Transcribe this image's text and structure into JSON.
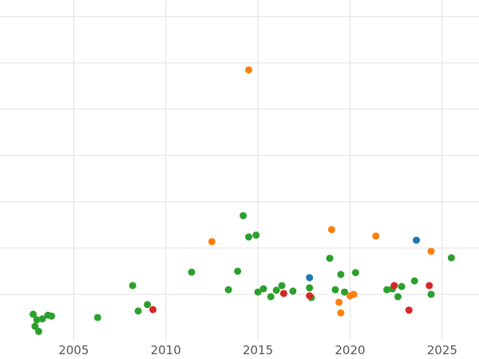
{
  "chart_data": {
    "type": "scatter",
    "title": "",
    "xlabel": "",
    "ylabel": "",
    "xlim": [
      2001,
      2027
    ],
    "ylim": [
      0,
      7.36
    ],
    "grid": true,
    "legend": "none",
    "x_ticks": [
      {
        "value": 2005,
        "label": "2005"
      },
      {
        "value": 2010,
        "label": "2010"
      },
      {
        "value": 2015,
        "label": "2015"
      },
      {
        "value": 2020,
        "label": "2020"
      },
      {
        "value": 2025,
        "label": "2025"
      }
    ],
    "y_gridlines": [
      1,
      2,
      3,
      4,
      5,
      6,
      7
    ],
    "series": [
      {
        "name": "series-green",
        "color": "#2ca02c",
        "points": [
          [
            2002.8,
            0.57
          ],
          [
            2002.9,
            0.31
          ],
          [
            2003.0,
            0.45
          ],
          [
            2003.1,
            0.2
          ],
          [
            2003.3,
            0.47
          ],
          [
            2003.6,
            0.55
          ],
          [
            2003.8,
            0.53
          ],
          [
            2006.3,
            0.5
          ],
          [
            2008.2,
            1.19
          ],
          [
            2008.5,
            0.64
          ],
          [
            2009.0,
            0.78
          ],
          [
            2011.4,
            1.48
          ],
          [
            2013.4,
            1.1
          ],
          [
            2013.9,
            1.5
          ],
          [
            2014.2,
            2.7
          ],
          [
            2014.5,
            2.24
          ],
          [
            2014.9,
            2.28
          ],
          [
            2015.0,
            1.05
          ],
          [
            2015.3,
            1.12
          ],
          [
            2015.7,
            0.95
          ],
          [
            2016.0,
            1.09
          ],
          [
            2016.3,
            1.19
          ],
          [
            2016.9,
            1.07
          ],
          [
            2017.8,
            1.14
          ],
          [
            2017.9,
            0.93
          ],
          [
            2018.9,
            1.78
          ],
          [
            2019.2,
            1.1
          ],
          [
            2019.5,
            1.43
          ],
          [
            2019.7,
            1.05
          ],
          [
            2020.3,
            1.47
          ],
          [
            2022.0,
            1.1
          ],
          [
            2022.3,
            1.12
          ],
          [
            2022.6,
            0.95
          ],
          [
            2022.8,
            1.17
          ],
          [
            2023.5,
            1.29
          ],
          [
            2024.4,
            1.0
          ],
          [
            2025.5,
            1.79
          ]
        ]
      },
      {
        "name": "series-orange",
        "color": "#ff7f0e",
        "points": [
          [
            2012.5,
            2.14
          ],
          [
            2014.5,
            5.85
          ],
          [
            2019.0,
            2.4
          ],
          [
            2019.4,
            0.83
          ],
          [
            2019.5,
            0.6
          ],
          [
            2020.0,
            0.97
          ],
          [
            2020.2,
            1.0
          ],
          [
            2021.4,
            2.26
          ],
          [
            2024.4,
            1.93
          ]
        ]
      },
      {
        "name": "series-red",
        "color": "#d62728",
        "points": [
          [
            2009.3,
            0.67
          ],
          [
            2016.4,
            1.02
          ],
          [
            2017.8,
            0.97
          ],
          [
            2022.4,
            1.19
          ],
          [
            2023.2,
            0.66
          ],
          [
            2024.3,
            1.19
          ]
        ]
      },
      {
        "name": "series-blue",
        "color": "#1f77b4",
        "points": [
          [
            2017.8,
            1.36
          ],
          [
            2023.6,
            2.17
          ]
        ]
      }
    ]
  },
  "styles": {
    "background": "#ffffff",
    "grid_color": "#e1e1e1",
    "tick_color": "#555555",
    "point_radius": 4.5,
    "tick_font_size": 15
  }
}
